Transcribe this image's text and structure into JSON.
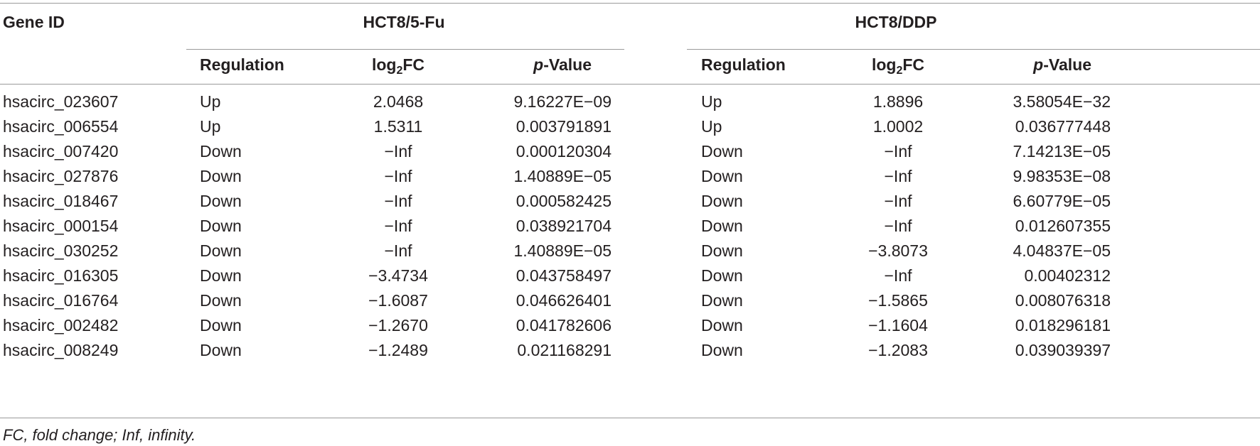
{
  "table": {
    "headers": {
      "gene_id": "Gene ID",
      "group1": "HCT8/5-Fu",
      "group2": "HCT8/DDP",
      "regulation": "Regulation",
      "log_base": "log",
      "log_sub": "2",
      "log_suffix": "FC",
      "p_prefix": "p",
      "p_suffix": "-Value"
    },
    "rows": [
      [
        "hsacirc_023607",
        "Up",
        "2.0468",
        "9.16227E−09",
        "Up",
        "1.8896",
        "3.58054E−32"
      ],
      [
        "hsacirc_006554",
        "Up",
        "1.5311",
        "0.003791891",
        "Up",
        "1.0002",
        "0.036777448"
      ],
      [
        "hsacirc_007420",
        "Down",
        "−Inf",
        "0.000120304",
        "Down",
        "−Inf",
        "7.14213E−05"
      ],
      [
        "hsacirc_027876",
        "Down",
        "−Inf",
        "1.40889E−05",
        "Down",
        "−Inf",
        "9.98353E−08"
      ],
      [
        "hsacirc_018467",
        "Down",
        "−Inf",
        "0.000582425",
        "Down",
        "−Inf",
        "6.60779E−05"
      ],
      [
        "hsacirc_000154",
        "Down",
        "−Inf",
        "0.038921704",
        "Down",
        "−Inf",
        "0.012607355"
      ],
      [
        "hsacirc_030252",
        "Down",
        "−Inf",
        "1.40889E−05",
        "Down",
        "−3.8073",
        "4.04837E−05"
      ],
      [
        "hsacirc_016305",
        "Down",
        "−3.4734",
        "0.043758497",
        "Down",
        "−Inf",
        "0.00402312"
      ],
      [
        "hsacirc_016764",
        "Down",
        "−1.6087",
        "0.046626401",
        "Down",
        "−1.5865",
        "0.008076318"
      ],
      [
        "hsacirc_002482",
        "Down",
        "−1.2670",
        "0.041782606",
        "Down",
        "−1.1604",
        "0.018296181"
      ],
      [
        "hsacirc_008249",
        "Down",
        "−1.2489",
        "0.021168291",
        "Down",
        "−1.2083",
        "0.039039397"
      ]
    ],
    "footnote": "FC, fold change; Inf, infinity."
  }
}
